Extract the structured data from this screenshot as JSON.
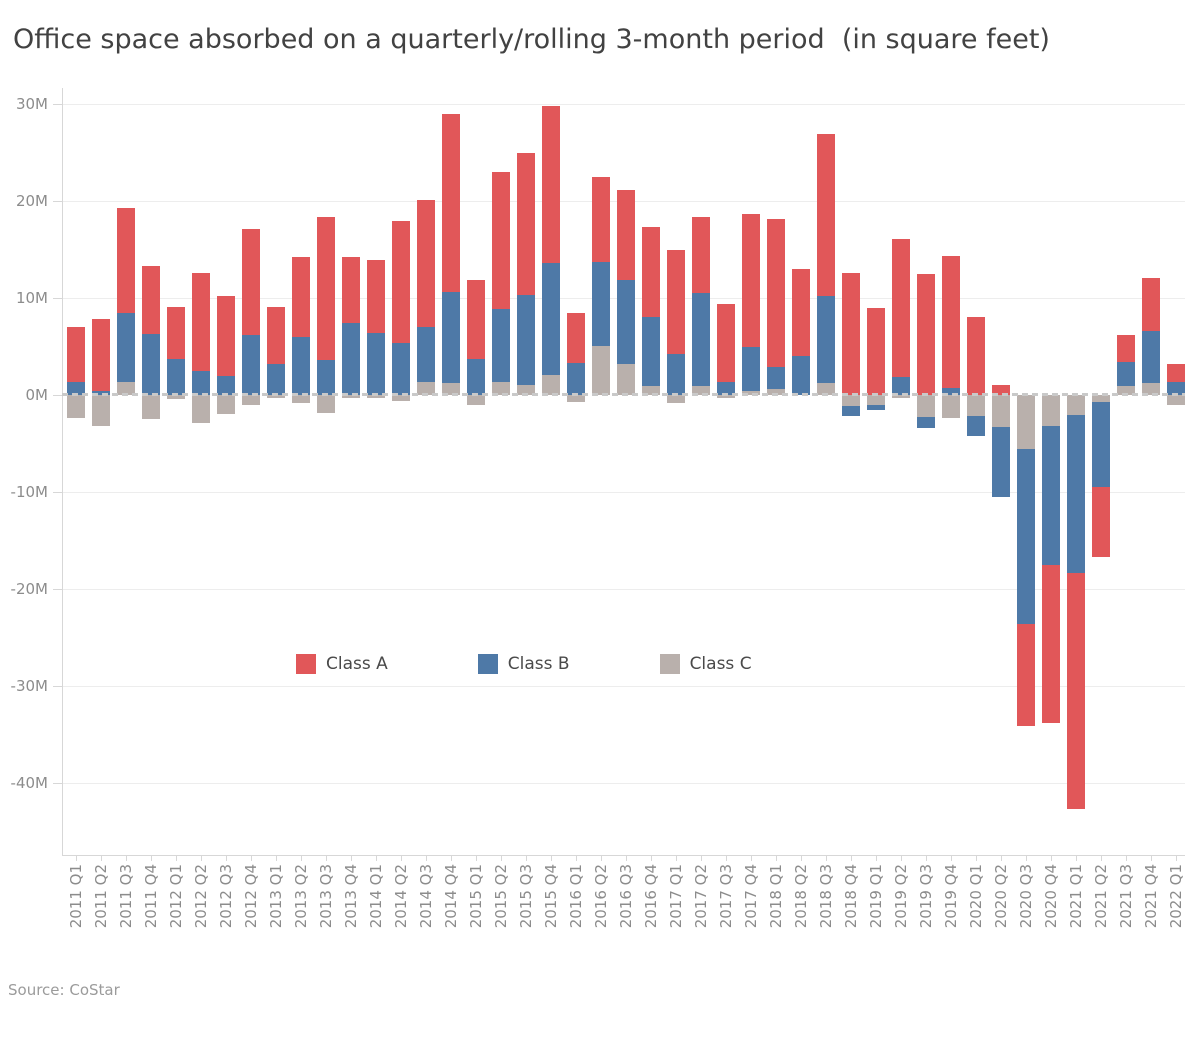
{
  "title": "Office space absorbed on a quarterly/rolling 3-month period  (in square feet)",
  "source": "Source: CoStar",
  "legend": [
    {
      "label": "Class A",
      "color": "#E15759"
    },
    {
      "label": "Class B",
      "color": "#4E79A7"
    },
    {
      "label": "Class C",
      "color": "#B9B0AC"
    }
  ],
  "colors": {
    "class_a": "#E15759",
    "class_b": "#4E79A7",
    "class_c": "#B9B0AC",
    "grid": "#ededed",
    "axis": "#d7d7d7",
    "zero_line": "#c9c9c9",
    "tick_text": "#8c8c8c",
    "title_text": "#424242"
  },
  "chart_data": {
    "type": "bar",
    "stacked": true,
    "title": "Office space absorbed on a quarterly/rolling 3-month period  (in square feet)",
    "unit": "millions of square feet",
    "xlabel": "",
    "ylabel": "",
    "grid": "horizontal",
    "legend_position": "inside-left-middle",
    "zero_line": "dashed",
    "ylim": [
      -47.4,
      31.6
    ],
    "y_ticks": [
      {
        "value": 30,
        "label": "30M"
      },
      {
        "value": 20,
        "label": "20M"
      },
      {
        "value": 10,
        "label": "10M"
      },
      {
        "value": 0,
        "label": "0M"
      },
      {
        "value": -10,
        "label": "-10M"
      },
      {
        "value": -20,
        "label": "-20M"
      },
      {
        "value": -30,
        "label": "-30M"
      },
      {
        "value": -40,
        "label": "-40M"
      }
    ],
    "categories": [
      "2011 Q1",
      "2011 Q2",
      "2011 Q3",
      "2011 Q4",
      "2012 Q1",
      "2012 Q2",
      "2012 Q3",
      "2012 Q4",
      "2013 Q1",
      "2013 Q2",
      "2013 Q3",
      "2013 Q4",
      "2014 Q1",
      "2014 Q2",
      "2014 Q3",
      "2014 Q4",
      "2015 Q1",
      "2015 Q2",
      "2015 Q3",
      "2015 Q4",
      "2016 Q1",
      "2016 Q2",
      "2016 Q3",
      "2016 Q4",
      "2017 Q1",
      "2017 Q2",
      "2017 Q3",
      "2017 Q4",
      "2018 Q1",
      "2018 Q2",
      "2018 Q3",
      "2018 Q4",
      "2019 Q1",
      "2019 Q2",
      "2019 Q3",
      "2019 Q4",
      "2020 Q1",
      "2020 Q2",
      "2020 Q3",
      "2020 Q4",
      "2021 Q1",
      "2021 Q2",
      "2021 Q3",
      "2021 Q4",
      "2022 Q1"
    ],
    "series": [
      {
        "name": "Class A",
        "color": "#E15759",
        "values": [
          5.7,
          7.4,
          10.8,
          7.0,
          5.3,
          10.0,
          8.3,
          10.9,
          5.8,
          8.2,
          14.7,
          6.8,
          7.5,
          12.6,
          13.1,
          18.3,
          8.1,
          14.1,
          14.6,
          16.1,
          5.1,
          8.7,
          9.3,
          9.3,
          10.7,
          7.8,
          8.1,
          13.7,
          15.2,
          9.0,
          16.7,
          12.5,
          8.9,
          14.2,
          12.4,
          13.6,
          8.0,
          1.0,
          -10.5,
          -16.3,
          -24.3,
          -7.2,
          2.8,
          5.4,
          1.9
        ]
      },
      {
        "name": "Class B",
        "color": "#4E79A7",
        "values": [
          1.3,
          0.4,
          7.1,
          6.3,
          3.7,
          2.5,
          1.9,
          6.2,
          3.2,
          6.0,
          3.6,
          7.4,
          6.4,
          5.3,
          5.7,
          9.4,
          3.7,
          7.5,
          9.3,
          11.6,
          3.3,
          8.7,
          8.6,
          7.1,
          4.2,
          9.6,
          1.3,
          4.5,
          2.3,
          4.0,
          9.0,
          -1.0,
          -0.6,
          1.8,
          -1.1,
          0.7,
          -2.0,
          -7.2,
          -18.0,
          -14.3,
          -16.3,
          -8.8,
          2.5,
          5.4,
          1.3
        ]
      },
      {
        "name": "Class C",
        "color": "#B9B0AC",
        "values": [
          -2.4,
          -3.2,
          1.3,
          -2.5,
          -0.4,
          -2.9,
          -2.0,
          -1.0,
          -0.3,
          -0.8,
          -1.9,
          -0.3,
          -0.3,
          -0.6,
          1.3,
          1.2,
          -1.0,
          1.3,
          1.0,
          2.0,
          -0.7,
          5.0,
          3.2,
          0.9,
          -0.8,
          0.9,
          -0.3,
          0.4,
          0.6,
          0.0,
          1.2,
          -1.2,
          -1.0,
          -0.3,
          -2.3,
          -2.4,
          -2.2,
          -3.3,
          -5.6,
          -3.2,
          -2.1,
          -0.7,
          0.9,
          1.2,
          -1.0
        ]
      }
    ]
  }
}
